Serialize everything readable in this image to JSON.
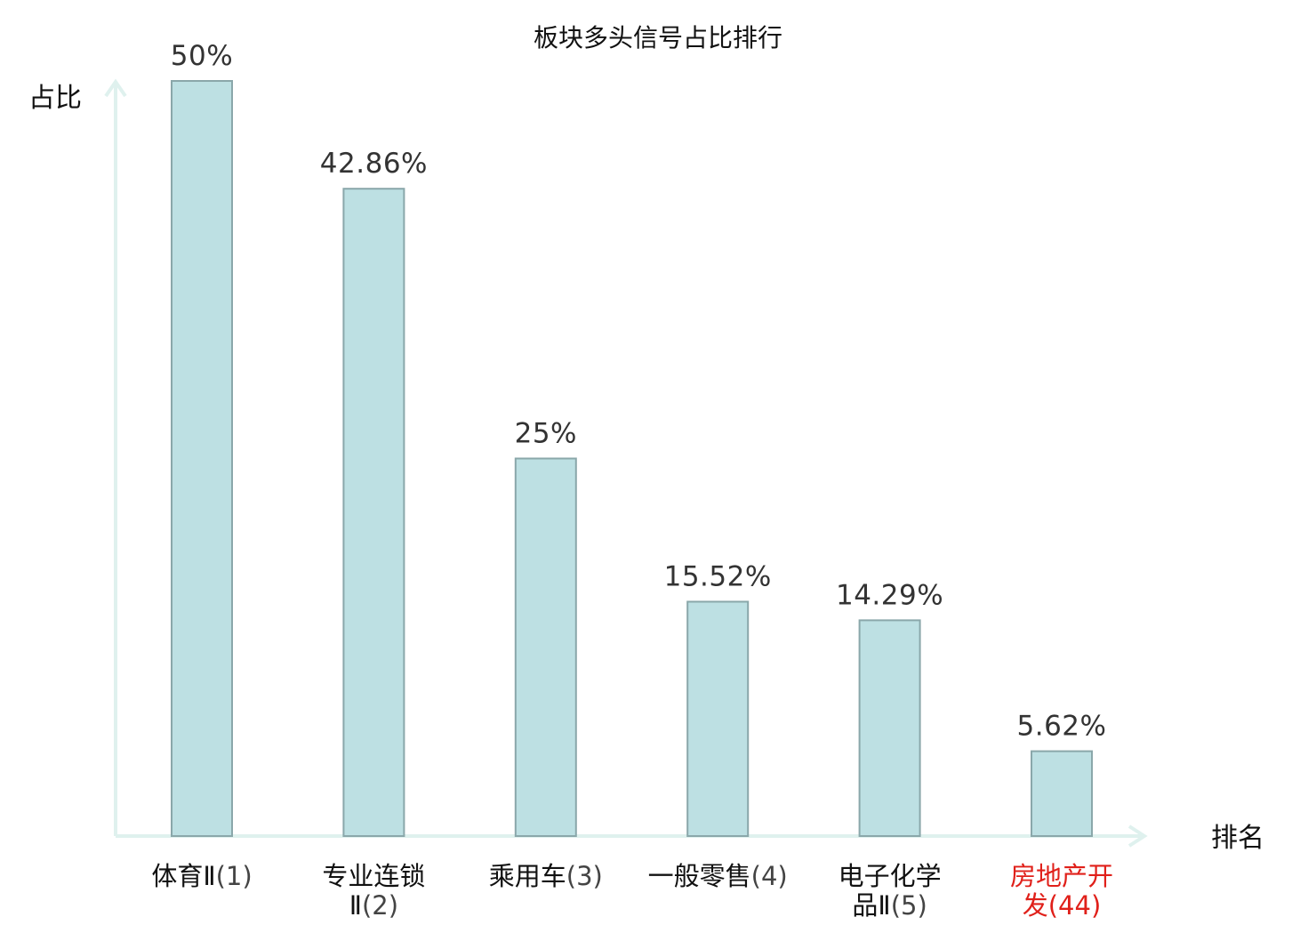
{
  "chart_data": {
    "type": "bar",
    "title": "板块多头信号占比排行",
    "ylabel": "占比",
    "xlabel": "排名",
    "ylim": [
      0,
      50
    ],
    "grid": false,
    "categories": [
      {
        "lines": [
          "体育Ⅱ"
        ],
        "rank": "(1)",
        "highlight": false
      },
      {
        "lines": [
          "专业连锁",
          "Ⅱ"
        ],
        "rank": "(2)",
        "highlight": false
      },
      {
        "lines": [
          "乘用车"
        ],
        "rank": "(3)",
        "highlight": false
      },
      {
        "lines": [
          "一般零售"
        ],
        "rank": "(4)",
        "highlight": false
      },
      {
        "lines": [
          "电子化学",
          "品Ⅱ"
        ],
        "rank": "(5)",
        "highlight": false
      },
      {
        "lines": [
          "房地产开",
          "发"
        ],
        "rank": "(44)",
        "highlight": true
      }
    ],
    "values": [
      50,
      42.86,
      25,
      15.52,
      14.29,
      5.62
    ],
    "value_labels": [
      "50%",
      "42.86%",
      "25%",
      "15.52%",
      "14.29%",
      "5.62%"
    ],
    "colors": {
      "bar_fill": "#bde0e3",
      "bar_stroke": "#8aa7aa",
      "axis": "#dff1ee",
      "highlight_text": "#e0201a",
      "normal_text": "#111111",
      "rank_text": "#444444"
    }
  }
}
